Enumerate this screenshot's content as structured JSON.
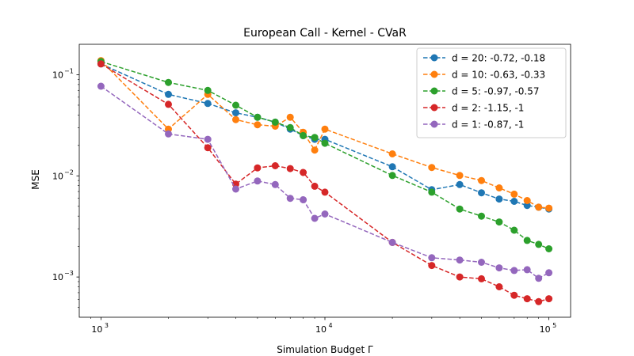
{
  "chart_data": {
    "type": "line",
    "title": "European Call - Kernel - CVaR",
    "xlabel": "Simulation Budget Γ",
    "ylabel": "MSE",
    "xscale": "log",
    "yscale": "log",
    "xlim": [
      800,
      125000
    ],
    "ylim": [
      0.0004,
      0.2
    ],
    "grid": false,
    "legend_position": "top-right",
    "x_ticks": [
      {
        "value": 1000,
        "base": "10",
        "exp": "3"
      },
      {
        "value": 10000,
        "base": "10",
        "exp": "4"
      },
      {
        "value": 100000,
        "base": "10",
        "exp": "5"
      }
    ],
    "y_ticks": [
      {
        "value": 0.001,
        "base": "10",
        "exp": "−3"
      },
      {
        "value": 0.01,
        "base": "10",
        "exp": "−2"
      },
      {
        "value": 0.1,
        "base": "10",
        "exp": "−1"
      }
    ],
    "x": [
      1000,
      2000,
      3000,
      4000,
      5000,
      6000,
      7000,
      8000,
      9000,
      10000,
      20000,
      30000,
      40000,
      50000,
      60000,
      70000,
      80000,
      90000,
      100000
    ],
    "series": [
      {
        "name": "d = 20: -0.72, -0.18",
        "color": "#1f77b4",
        "values": [
          0.128,
          0.064,
          0.052,
          0.042,
          0.038,
          0.034,
          0.029,
          0.025,
          0.023,
          0.023,
          0.0123,
          0.0073,
          0.0082,
          0.0068,
          0.0059,
          0.0056,
          0.0051,
          0.0049,
          0.0047
        ]
      },
      {
        "name": "d = 10: -0.63, -0.33",
        "color": "#ff7f0e",
        "values": [
          0.138,
          0.029,
          0.064,
          0.036,
          0.032,
          0.031,
          0.038,
          0.027,
          0.018,
          0.029,
          0.0165,
          0.0121,
          0.0101,
          0.009,
          0.0076,
          0.0066,
          0.0057,
          0.0049,
          0.0048
        ]
      },
      {
        "name": "d = 5: -0.97, -0.57",
        "color": "#2ca02c",
        "values": [
          0.135,
          0.084,
          0.07,
          0.05,
          0.038,
          0.034,
          0.03,
          0.025,
          0.024,
          0.021,
          0.0101,
          0.0069,
          0.0047,
          0.004,
          0.0035,
          0.0029,
          0.0023,
          0.0021,
          0.0019
        ]
      },
      {
        "name": "d = 2: -1.15, -1",
        "color": "#d62728",
        "values": [
          0.128,
          0.051,
          0.019,
          0.0083,
          0.012,
          0.0126,
          0.0118,
          0.0108,
          0.0079,
          0.0069,
          0.0022,
          0.0013,
          0.001,
          0.00096,
          0.0008,
          0.00066,
          0.00061,
          0.00057,
          0.00061
        ]
      },
      {
        "name": "d = 1: -0.87, -1",
        "color": "#9467bd",
        "values": [
          0.077,
          0.026,
          0.023,
          0.0074,
          0.0089,
          0.0082,
          0.006,
          0.0058,
          0.0038,
          0.0042,
          0.0022,
          0.00155,
          0.00147,
          0.0014,
          0.00123,
          0.00116,
          0.00118,
          0.00097,
          0.0011
        ]
      }
    ]
  }
}
